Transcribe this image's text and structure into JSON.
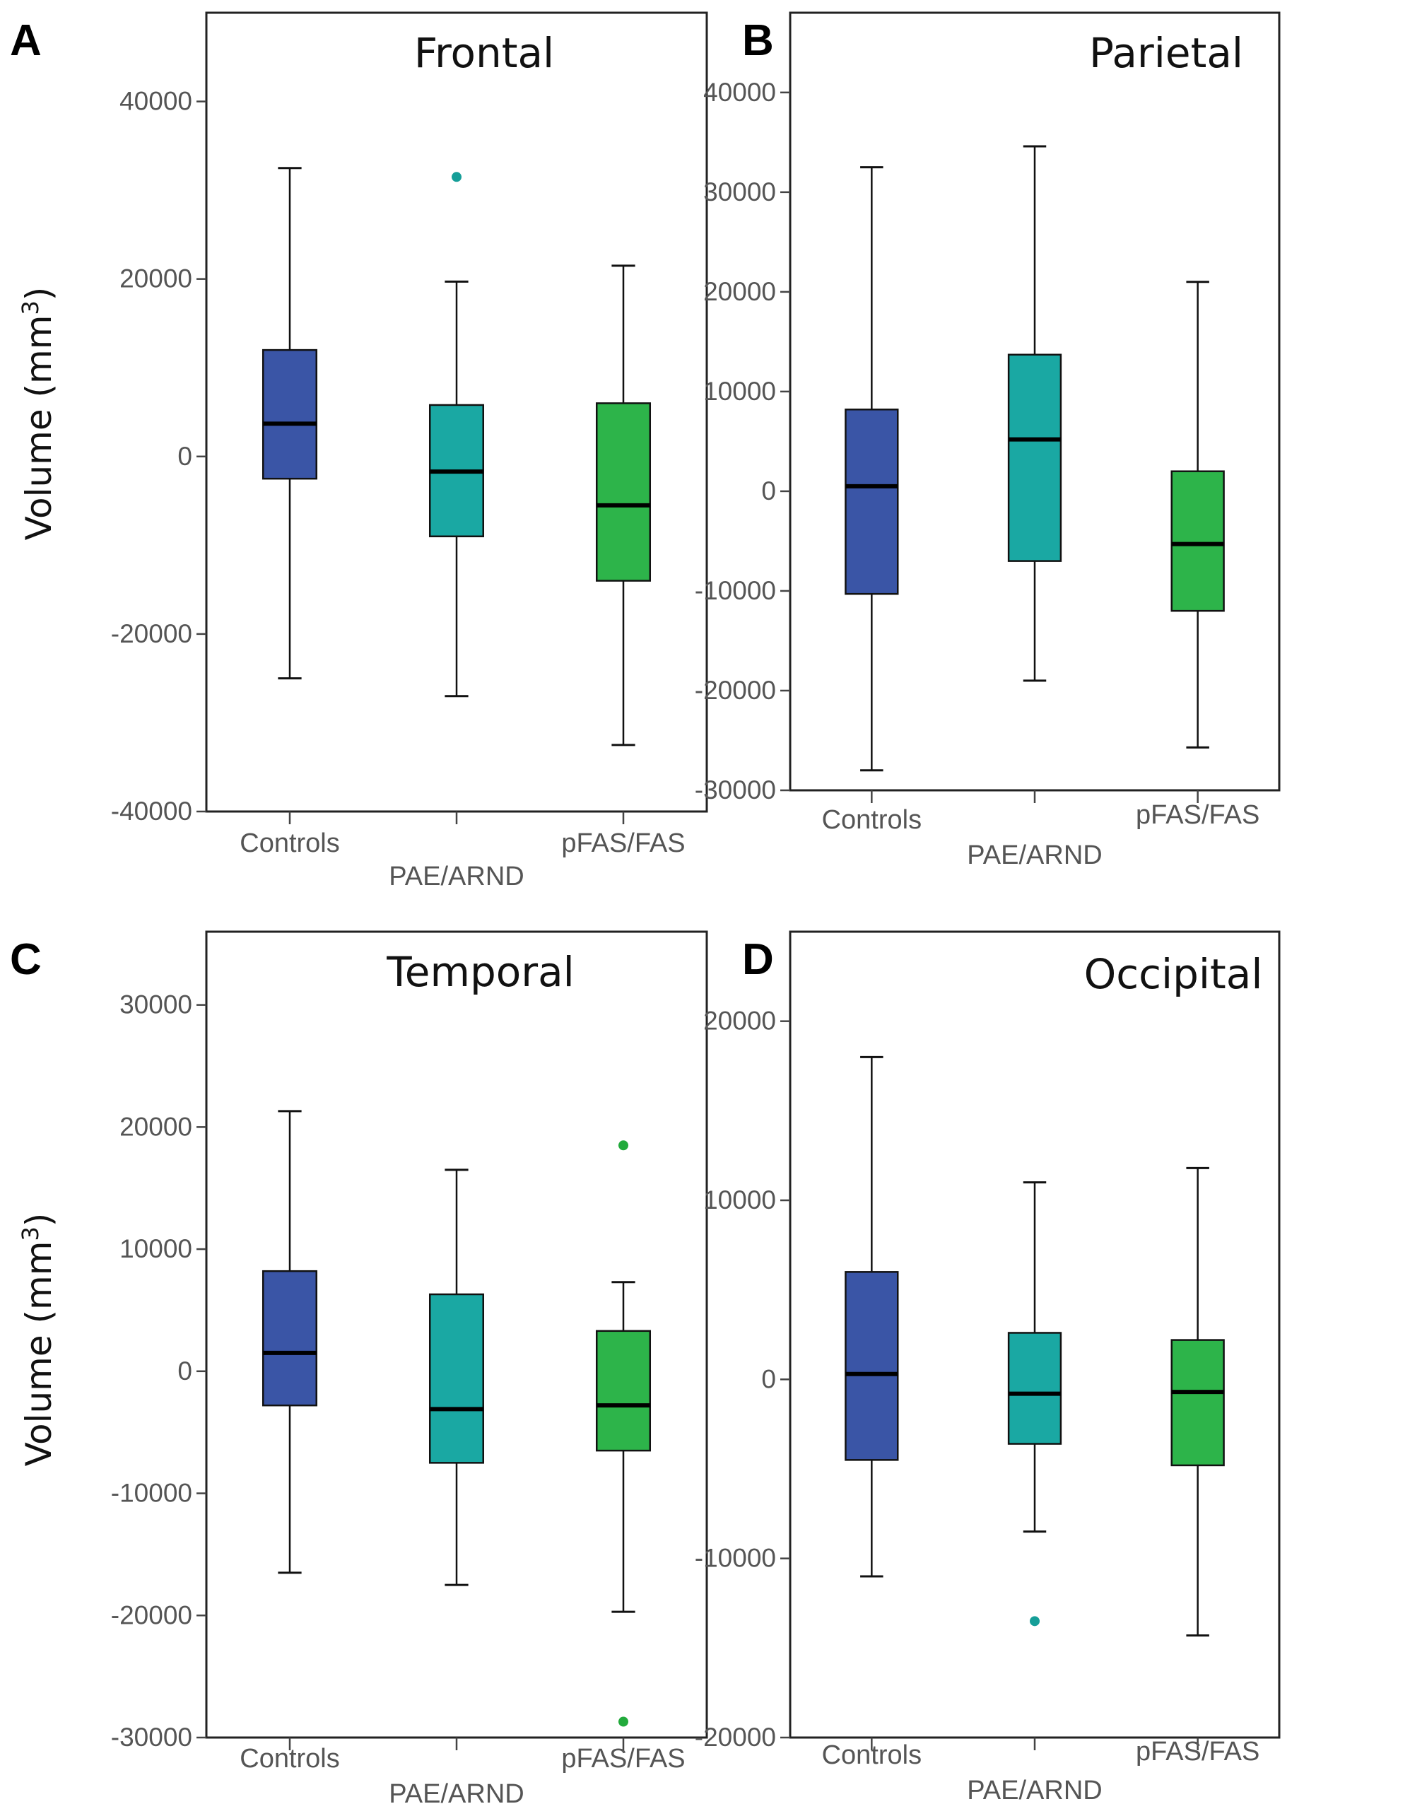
{
  "figure": {
    "y_axis_label": "Volume (mm",
    "y_axis_unit_superscript": "3",
    "y_axis_label_close": ")"
  },
  "colors": {
    "Controls": "#3a55a6",
    "PAE/ARND": "#1aa8a3",
    "pFAS/FAS": "#2db44a",
    "outlier_teal": "#159e98",
    "outlier_green": "#22aa3c",
    "median": "#000000",
    "frame": "#222222"
  },
  "chart_data": [
    {
      "panel": "A",
      "type": "box",
      "title": "Frontal",
      "ylabel": "Volume (mm3)",
      "ylim": [
        -40000,
        50000
      ],
      "yticks": [
        -40000,
        -20000,
        0,
        20000,
        40000
      ],
      "ytick_labels": [
        "-40000",
        "-20000",
        "0",
        "20000",
        "40000"
      ],
      "categories": [
        "Controls",
        "PAE/ARND",
        "pFAS/FAS"
      ],
      "boxes": [
        {
          "group": "Controls",
          "min": -25000,
          "q1": -2500,
          "median": 3700,
          "q3": 12000,
          "max": 32500,
          "outliers": []
        },
        {
          "group": "PAE/ARND",
          "min": -27000,
          "q1": -9000,
          "median": -1700,
          "q3": 5800,
          "max": 19700,
          "outliers": [
            31500
          ]
        },
        {
          "group": "pFAS/FAS",
          "min": -32500,
          "q1": -14000,
          "median": -5500,
          "q3": 6000,
          "max": 21500,
          "outliers": []
        }
      ]
    },
    {
      "panel": "B",
      "type": "box",
      "title": "Parietal",
      "ylabel": "",
      "ylim": [
        -30000,
        48000
      ],
      "yticks": [
        -30000,
        -20000,
        -10000,
        0,
        10000,
        20000,
        30000,
        40000
      ],
      "ytick_labels": [
        "-30000",
        "-20000",
        "-10000",
        "0",
        "10000",
        "20000",
        "30000",
        "40000"
      ],
      "categories": [
        "Controls",
        "PAE/ARND",
        "pFAS/FAS"
      ],
      "boxes": [
        {
          "group": "Controls",
          "min": -28000,
          "q1": -10300,
          "median": 500,
          "q3": 8200,
          "max": 32500,
          "outliers": []
        },
        {
          "group": "PAE/ARND",
          "min": -19000,
          "q1": -7000,
          "median": 5200,
          "q3": 13700,
          "max": 34600,
          "outliers": []
        },
        {
          "group": "pFAS/FAS",
          "min": -25700,
          "q1": -12000,
          "median": -5300,
          "q3": 2000,
          "max": 21000,
          "outliers": []
        }
      ]
    },
    {
      "panel": "C",
      "type": "box",
      "title": "Temporal",
      "ylabel": "Volume (mm3)",
      "ylim": [
        -30000,
        36000
      ],
      "yticks": [
        -30000,
        -20000,
        -10000,
        0,
        10000,
        20000,
        30000
      ],
      "ytick_labels": [
        "-30000",
        "-20000",
        "-10000",
        "0",
        "10000",
        "20000",
        "30000"
      ],
      "categories": [
        "Controls",
        "PAE/ARND",
        "pFAS/FAS"
      ],
      "boxes": [
        {
          "group": "Controls",
          "min": -16500,
          "q1": -2800,
          "median": 1500,
          "q3": 8200,
          "max": 21300,
          "outliers": []
        },
        {
          "group": "PAE/ARND",
          "min": -17500,
          "q1": -7500,
          "median": -3100,
          "q3": 6300,
          "max": 16500,
          "outliers": []
        },
        {
          "group": "pFAS/FAS",
          "min": -19700,
          "q1": -6500,
          "median": -2800,
          "q3": 3300,
          "max": 7300,
          "outliers": [
            18500,
            -28700
          ]
        }
      ]
    },
    {
      "panel": "D",
      "type": "box",
      "title": "Occipital",
      "ylabel": "",
      "ylim": [
        -20000,
        25000
      ],
      "yticks": [
        -20000,
        -10000,
        0,
        10000,
        20000
      ],
      "ytick_labels": [
        "-20000",
        "-10000",
        "0",
        "10000",
        "20000"
      ],
      "categories": [
        "Controls",
        "PAE/ARND",
        "pFAS/FAS"
      ],
      "boxes": [
        {
          "group": "Controls",
          "min": -11000,
          "q1": -4500,
          "median": 300,
          "q3": 6000,
          "max": 18000,
          "outliers": []
        },
        {
          "group": "PAE/ARND",
          "min": -8500,
          "q1": -3600,
          "median": -800,
          "q3": 2600,
          "max": 11000,
          "outliers": [
            -13500
          ]
        },
        {
          "group": "pFAS/FAS",
          "min": -14300,
          "q1": -4800,
          "median": -700,
          "q3": 2200,
          "max": 11800,
          "outliers": []
        }
      ]
    }
  ]
}
